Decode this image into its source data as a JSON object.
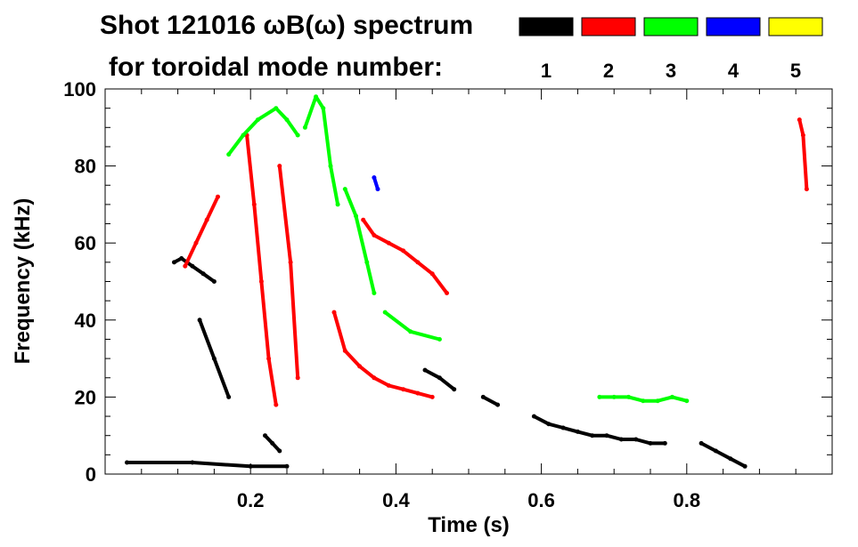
{
  "chart_data": {
    "type": "scatter",
    "title_line1": "Shot 121016 ωB(ω) spectrum",
    "title_line2": "for toroidal mode number:",
    "xlabel": "Time (s)",
    "ylabel": "Frequency (kHz)",
    "xlim": [
      0.0,
      1.0
    ],
    "ylim": [
      0,
      100
    ],
    "xticks": [
      0.2,
      0.4,
      0.6,
      0.8
    ],
    "xtick_labels": [
      "0.2",
      "0.4",
      "0.6",
      "0.8"
    ],
    "yticks": [
      0,
      20,
      40,
      60,
      80,
      100
    ],
    "ytick_labels": [
      "0",
      "20",
      "40",
      "60",
      "80",
      "100"
    ],
    "grid": false,
    "legend_position": "top-right",
    "series": [
      {
        "name": "1",
        "color": "#000000",
        "traces": [
          {
            "x": [
              0.095,
              0.105,
              0.12,
              0.135,
              0.15
            ],
            "y": [
              55,
              56,
              54,
              52,
              50
            ]
          },
          {
            "x": [
              0.13,
              0.15,
              0.17
            ],
            "y": [
              40,
              30,
              20
            ]
          },
          {
            "x": [
              0.22,
              0.23,
              0.24
            ],
            "y": [
              10,
              8,
              6
            ]
          },
          {
            "x": [
              0.44,
              0.46,
              0.48
            ],
            "y": [
              27,
              25,
              22
            ]
          },
          {
            "x": [
              0.52,
              0.54
            ],
            "y": [
              20,
              18
            ]
          },
          {
            "x": [
              0.59,
              0.61,
              0.63,
              0.65,
              0.67,
              0.69,
              0.71,
              0.73,
              0.75,
              0.77
            ],
            "y": [
              15,
              13,
              12,
              11,
              10,
              10,
              9,
              9,
              8,
              8
            ]
          },
          {
            "x": [
              0.82,
              0.84,
              0.86,
              0.88
            ],
            "y": [
              8,
              6,
              4,
              2
            ]
          },
          {
            "x": [
              0.03,
              0.12,
              0.2,
              0.25
            ],
            "y": [
              3,
              3,
              2,
              2
            ]
          }
        ]
      },
      {
        "name": "2",
        "color": "#ff0000",
        "traces": [
          {
            "x": [
              0.11,
              0.125,
              0.14,
              0.155
            ],
            "y": [
              54,
              60,
              66,
              72
            ]
          },
          {
            "x": [
              0.195,
              0.205,
              0.215,
              0.225,
              0.235
            ],
            "y": [
              88,
              70,
              50,
              30,
              18
            ]
          },
          {
            "x": [
              0.24,
              0.255,
              0.265
            ],
            "y": [
              80,
              55,
              25
            ]
          },
          {
            "x": [
              0.355,
              0.37,
              0.39,
              0.41,
              0.43,
              0.45,
              0.47
            ],
            "y": [
              66,
              62,
              60,
              58,
              55,
              52,
              47
            ]
          },
          {
            "x": [
              0.315,
              0.33,
              0.35,
              0.37,
              0.39,
              0.41,
              0.43,
              0.45
            ],
            "y": [
              42,
              32,
              28,
              25,
              23,
              22,
              21,
              20
            ]
          },
          {
            "x": [
              0.955,
              0.96,
              0.965
            ],
            "y": [
              92,
              88,
              74
            ]
          }
        ]
      },
      {
        "name": "3",
        "color": "#00ff00",
        "traces": [
          {
            "x": [
              0.17,
              0.19,
              0.21,
              0.235,
              0.25,
              0.265
            ],
            "y": [
              83,
              88,
              92,
              95,
              92,
              88
            ]
          },
          {
            "x": [
              0.275,
              0.29,
              0.3,
              0.31,
              0.32
            ],
            "y": [
              90,
              98,
              95,
              80,
              70
            ]
          },
          {
            "x": [
              0.33,
              0.345,
              0.36,
              0.37
            ],
            "y": [
              74,
              67,
              55,
              47
            ]
          },
          {
            "x": [
              0.385,
              0.42,
              0.46
            ],
            "y": [
              42,
              37,
              35
            ]
          },
          {
            "x": [
              0.68,
              0.7,
              0.72,
              0.74,
              0.76,
              0.78,
              0.8
            ],
            "y": [
              20,
              20,
              20,
              19,
              19,
              20,
              19
            ]
          }
        ]
      },
      {
        "name": "4",
        "color": "#0000ff",
        "traces": [
          {
            "x": [
              0.37,
              0.375
            ],
            "y": [
              77,
              74
            ]
          }
        ]
      },
      {
        "name": "5",
        "color": "#ffff00",
        "traces": []
      }
    ]
  }
}
